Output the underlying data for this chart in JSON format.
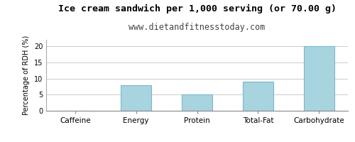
{
  "title": "Ice cream sandwich per 1,000 serving (or 70.00 g)",
  "subtitle": "www.dietandfitnesstoday.com",
  "categories": [
    "Caffeine",
    "Energy",
    "Protein",
    "Total-Fat",
    "Carbohydrate"
  ],
  "values": [
    0,
    8,
    5,
    9,
    20
  ],
  "bar_color": "#a8d4df",
  "bar_edge_color": "#7ab8cc",
  "ylabel": "Percentage of RDH (%)",
  "ylim": [
    0,
    22
  ],
  "yticks": [
    0,
    5,
    10,
    15,
    20
  ],
  "title_fontsize": 9.5,
  "subtitle_fontsize": 8.5,
  "ylabel_fontsize": 7,
  "xlabel_fontsize": 7.5,
  "background_color": "#ffffff",
  "grid_color": "#cccccc"
}
